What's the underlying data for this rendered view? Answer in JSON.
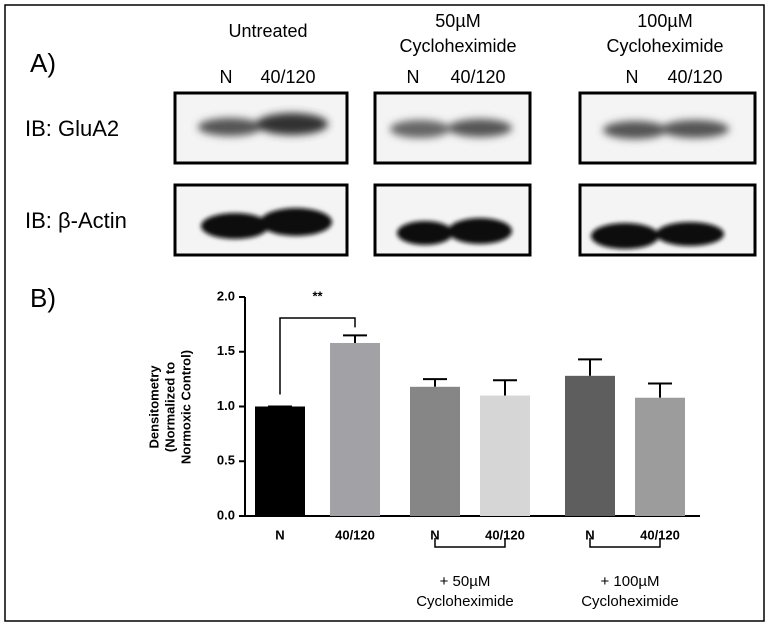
{
  "panel_a": {
    "label": "A)",
    "groups": [
      {
        "title": [
          "Untreated"
        ],
        "lanes": [
          "N",
          "40/120"
        ]
      },
      {
        "title": [
          "50µM",
          "Cycloheximide"
        ],
        "lanes": [
          "N",
          "40/120"
        ]
      },
      {
        "title": [
          "100µM",
          "Cycloheximide"
        ],
        "lanes": [
          "N",
          "40/120"
        ]
      }
    ],
    "rows": [
      "IB: GluA2",
      "IB: β-Actin"
    ]
  },
  "panel_b": {
    "label": "B)"
  },
  "chart_data": {
    "type": "bar",
    "categories": [
      "N",
      "40/120",
      "N",
      "40/120",
      "N",
      "40/120"
    ],
    "values": [
      1.0,
      1.58,
      1.18,
      1.1,
      1.28,
      1.08
    ],
    "errors": [
      0,
      0.07,
      0.07,
      0.14,
      0.15,
      0.13
    ],
    "colors": [
      "#000000",
      "#a2a2a6",
      "#868686",
      "#d6d6d6",
      "#5e5e5e",
      "#9c9c9c"
    ],
    "ylabel": [
      "Densitometry",
      "(Normalized to",
      "Normoxic Control)"
    ],
    "ylim": [
      0,
      2.0
    ],
    "yticks": [
      {
        "value": 0,
        "label": "0.0"
      },
      0.5,
      {
        "value": 1.0,
        "label": "1.0"
      },
      1.5,
      {
        "value": 2.0,
        "label": "2.0"
      }
    ],
    "annotation": "**",
    "group_labels": [
      [
        "+ 50µM",
        "Cycloheximide"
      ],
      [
        "+ 100µM",
        "Cycloheximide"
      ]
    ]
  }
}
